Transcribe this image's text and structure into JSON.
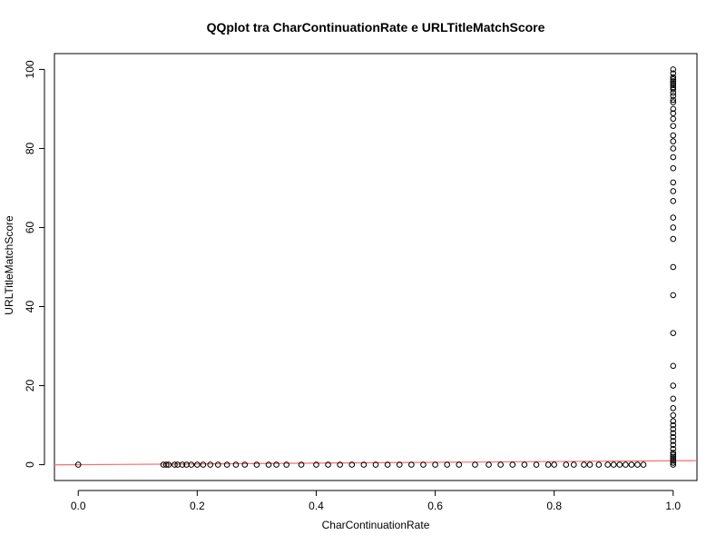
{
  "chart_data": {
    "type": "scatter",
    "title": "QQplot tra CharContinuationRate e URLTitleMatchScore",
    "xlabel": "CharContinuationRate",
    "ylabel": "URLTitleMatchScore",
    "xlim": [
      -0.04,
      1.04
    ],
    "ylim": [
      -4,
      104
    ],
    "x_ticks": [
      0.0,
      0.2,
      0.4,
      0.6,
      0.8,
      1.0
    ],
    "x_tick_labels": [
      "0.0",
      "0.2",
      "0.4",
      "0.6",
      "0.8",
      "1.0"
    ],
    "y_ticks": [
      0,
      20,
      40,
      60,
      80,
      100
    ],
    "y_tick_labels": [
      "0",
      "20",
      "40",
      "60",
      "80",
      "100"
    ],
    "grid": false,
    "point_color": "#000000",
    "reference_line": {
      "color": "#ff6b6b",
      "intercept": 0,
      "slope": 1
    },
    "series": [
      {
        "x": [
          0.0,
          0.143,
          0.148,
          0.152,
          0.162,
          0.167,
          0.175,
          0.182,
          0.19,
          0.2,
          0.21,
          0.222,
          0.235,
          0.25,
          0.265,
          0.28,
          0.3,
          0.32,
          0.333,
          0.35,
          0.375,
          0.4,
          0.42,
          0.44,
          0.46,
          0.48,
          0.5,
          0.52,
          0.54,
          0.56,
          0.58,
          0.6,
          0.62,
          0.64,
          0.667,
          0.69,
          0.71,
          0.73,
          0.75,
          0.77,
          0.79,
          0.8,
          0.82,
          0.833,
          0.85,
          0.86,
          0.875,
          0.89,
          0.9,
          0.91,
          0.92,
          0.93,
          0.94,
          0.95,
          1.0,
          1.0,
          1.0,
          1.0,
          1.0,
          1.0,
          1.0,
          1.0,
          1.0,
          1.0,
          1.0,
          1.0,
          1.0,
          1.0,
          1.0,
          1.0,
          1.0,
          1.0,
          1.0,
          1.0,
          1.0,
          1.0,
          1.0,
          1.0,
          1.0,
          1.0,
          1.0,
          1.0,
          1.0,
          1.0,
          1.0,
          1.0,
          1.0,
          1.0,
          1.0,
          1.0,
          1.0,
          1.0,
          1.0,
          1.0,
          1.0,
          1.0,
          1.0,
          1.0,
          1.0,
          1.0,
          1.0,
          1.0,
          1.0,
          1.0,
          1.0
        ],
        "y": [
          0,
          0,
          0,
          0,
          0,
          0,
          0,
          0,
          0,
          0,
          0,
          0,
          0,
          0,
          0,
          0,
          0,
          0,
          0,
          0,
          0,
          0,
          0,
          0,
          0,
          0,
          0,
          0,
          0,
          0,
          0,
          0,
          0,
          0,
          0,
          0,
          0,
          0,
          0,
          0,
          0,
          0,
          0,
          0,
          0,
          0,
          0,
          0,
          0,
          0,
          0,
          0,
          0,
          0,
          0,
          0.5,
          1,
          1.5,
          2,
          2.5,
          3,
          4,
          5,
          6,
          7,
          8,
          9,
          10,
          11,
          12.5,
          14.3,
          16.7,
          20,
          25,
          33.3,
          42.9,
          50,
          57.1,
          60,
          62.5,
          66.7,
          69.2,
          71.4,
          75,
          77.8,
          80,
          81.8,
          83.3,
          85.7,
          87.5,
          88.9,
          90,
          91.7,
          92.3,
          93.3,
          94.1,
          95,
          95.5,
          96,
          96.5,
          97,
          97.5,
          98,
          99,
          100
        ]
      }
    ]
  }
}
